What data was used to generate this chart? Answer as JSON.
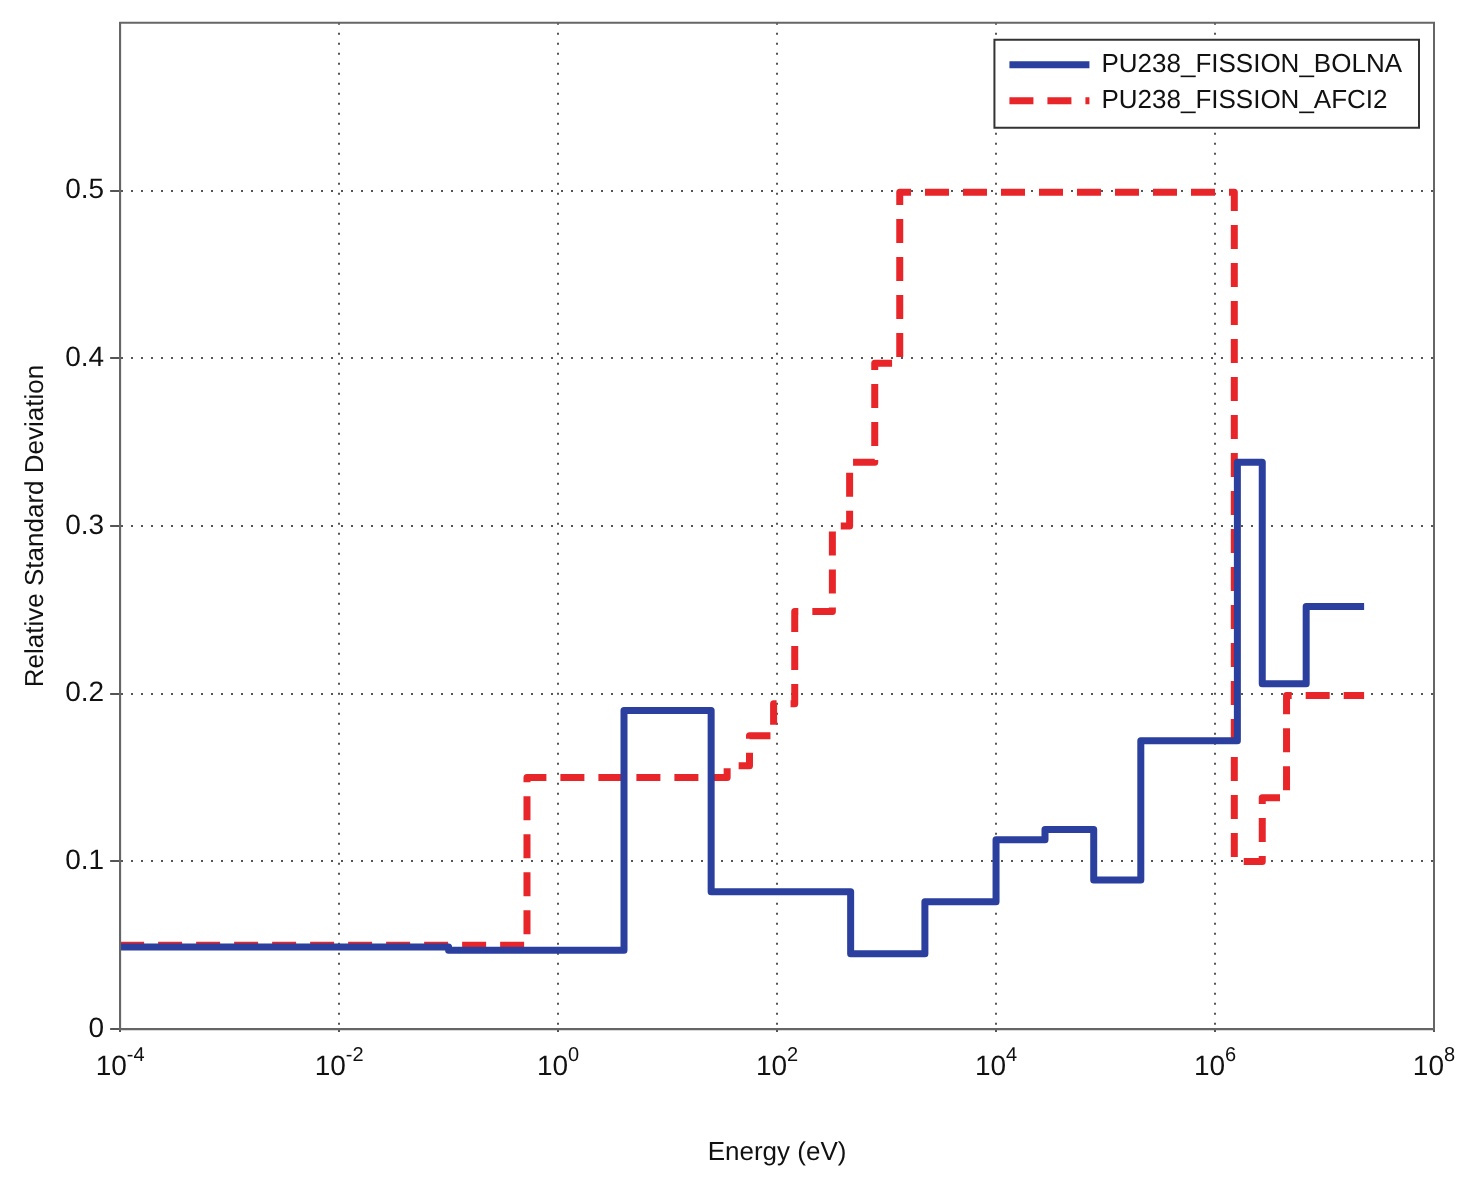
{
  "chart_data": {
    "type": "step",
    "xlabel": "Energy (eV)",
    "ylabel": "Relative Standard Deviation",
    "log": "x",
    "xlim": [
      0.0001,
      100000000
    ],
    "xticks": [
      {
        "value": 0.0001,
        "label": "10$^{-4}$"
      },
      {
        "value": 0.01,
        "label": "10$^{-2}$"
      },
      {
        "value": 1,
        "label": "10$^{0}$"
      },
      {
        "value": 100,
        "label": "10$^{2}$"
      },
      {
        "value": 10000,
        "label": "10$^{4}$"
      },
      {
        "value": 1000000,
        "label": "10$^{6}$"
      },
      {
        "value": 100000000,
        "label": "10$^{8}$"
      }
    ],
    "ylim": [
      0,
      0.6
    ],
    "yticks": [
      {
        "value": 0,
        "label": "0"
      },
      {
        "value": 0.1,
        "label": "0.1"
      },
      {
        "value": 0.2,
        "label": "0.2"
      },
      {
        "value": 0.3,
        "label": "0.3"
      },
      {
        "value": 0.4,
        "label": "0.4"
      },
      {
        "value": 0.5,
        "label": "0.5"
      }
    ],
    "grid": true,
    "legend": "top right",
    "marker": "none",
    "series": [
      {
        "name": "PU238_FISSION_BOLNA",
        "color": "#2a3f9e",
        "line_style": "solid",
        "x": [
          0.0001,
          0.1,
          4,
          25,
          470,
          2240,
          10000,
          28000,
          78000,
          210000,
          1600000,
          2700000,
          6800000,
          23000000
        ],
        "values": [
          0.049,
          0.047,
          0.19,
          0.082,
          0.045,
          0.076,
          0.113,
          0.119,
          0.089,
          0.172,
          0.338,
          0.206,
          0.252,
          0.252
        ]
      },
      {
        "name": "PU238_FISSION_AFCI2",
        "color": "#e8262a",
        "line_style": "dashed",
        "x": [
          0.0001,
          0.52,
          35,
          56,
          93,
          145,
          320,
          460,
          780,
          1320,
          1500000,
          2700000,
          4500000,
          23000000
        ],
        "values": [
          0.05,
          0.15,
          0.157,
          0.175,
          0.194,
          0.249,
          0.3,
          0.338,
          0.397,
          0.499,
          0.1,
          0.138,
          0.199,
          0.199
        ]
      }
    ]
  }
}
